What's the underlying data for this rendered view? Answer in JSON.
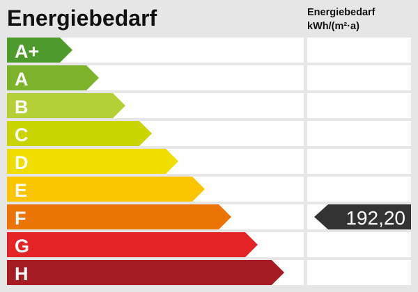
{
  "chart_data": {
    "type": "bar",
    "title": "Energiebedarf",
    "value_header": [
      "Energiebedarf",
      "kWh/(m²·a)"
    ],
    "categories": [
      "A+",
      "A",
      "B",
      "C",
      "D",
      "E",
      "F",
      "G",
      "H"
    ],
    "colors": [
      "#4f9a2c",
      "#7db32a",
      "#b5cf37",
      "#c9d400",
      "#f0dd00",
      "#fbc600",
      "#ec7404",
      "#e42326",
      "#a61b22"
    ],
    "marker": {
      "class": "F",
      "value": "192,20",
      "color": "#333333"
    }
  }
}
